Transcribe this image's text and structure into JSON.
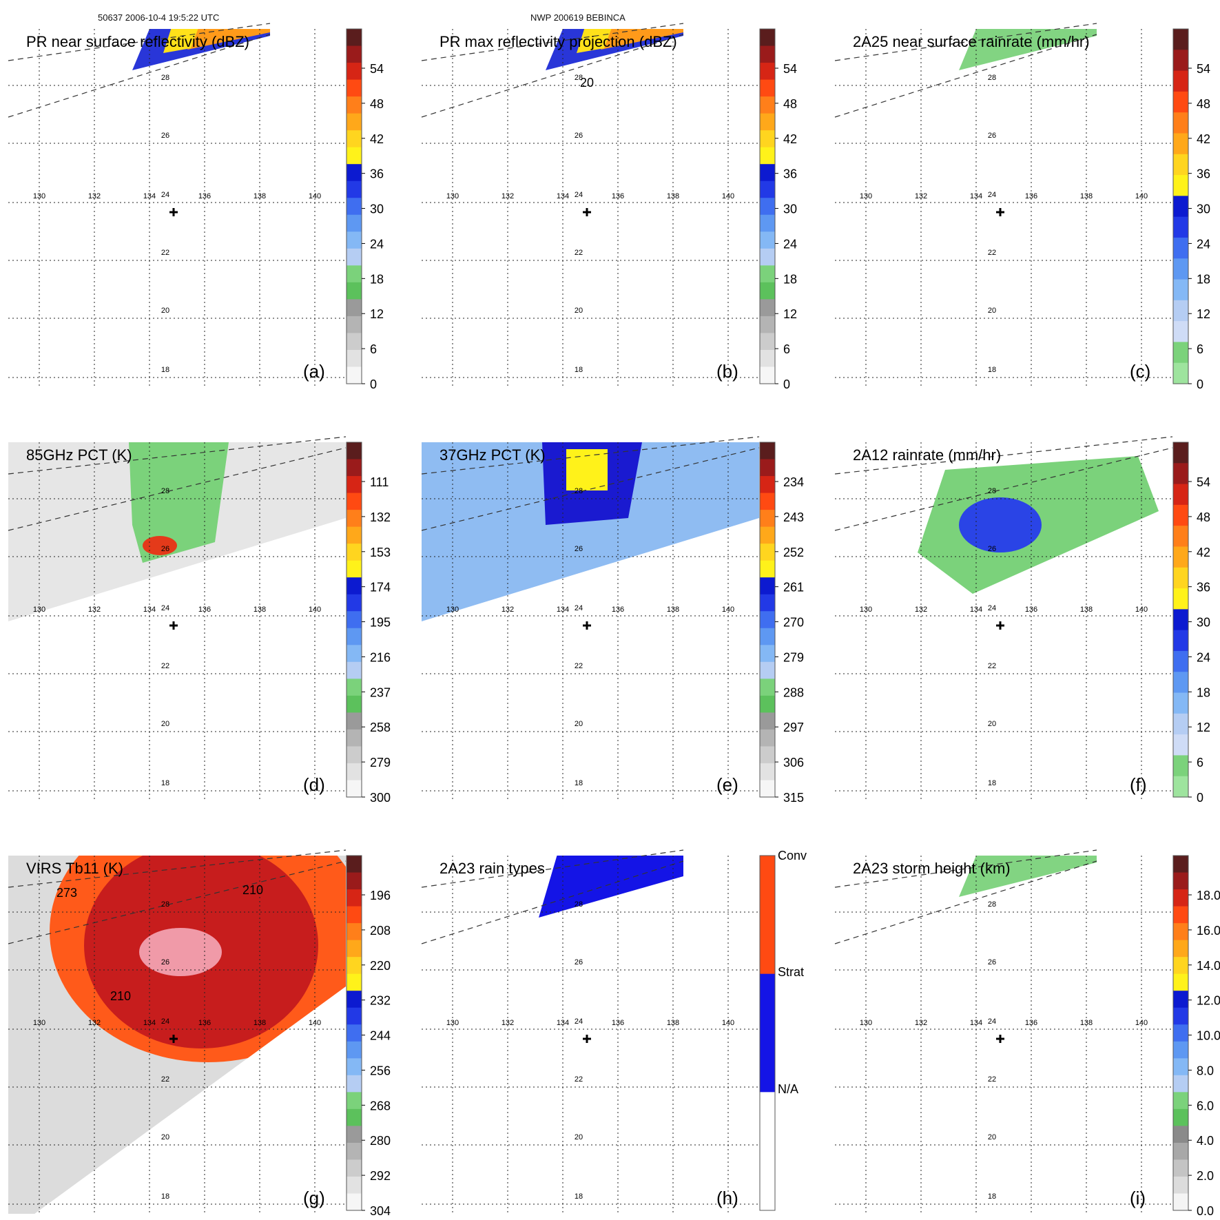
{
  "header": {
    "left": "50637 2006-10-4 19:5:22 UTC",
    "center": "NWP 200619 BEBINCA"
  },
  "map": {
    "lon_ticks": [
      "130",
      "132",
      "134",
      "136",
      "138",
      "140"
    ],
    "lat_ticks": [
      "28",
      "26",
      "24",
      "22",
      "20",
      "18"
    ],
    "storm_center_marker": "plus-icon"
  },
  "chart_data": [
    {
      "type": "heatmap",
      "panel": "(a)",
      "title": "PR near surface reflectivity (dBZ)",
      "colorbar_ticks": [
        "54",
        "48",
        "42",
        "36",
        "30",
        "24",
        "18",
        "12",
        "6",
        "0"
      ]
    },
    {
      "type": "heatmap",
      "panel": "(b)",
      "title": "PR max reflectivity projection (dBZ)",
      "contour_labels": [
        "20"
      ],
      "colorbar_ticks": [
        "54",
        "48",
        "42",
        "36",
        "30",
        "24",
        "18",
        "12",
        "6",
        "0"
      ]
    },
    {
      "type": "heatmap",
      "panel": "(c)",
      "title": "2A25 near surface rainrate (mm/hr)",
      "colorbar_ticks": [
        "54",
        "48",
        "42",
        "36",
        "30",
        "24",
        "18",
        "12",
        "6",
        "0"
      ]
    },
    {
      "type": "heatmap",
      "panel": "(d)",
      "title": "85GHz PCT (K)",
      "colorbar_ticks": [
        "111",
        "132",
        "153",
        "174",
        "195",
        "216",
        "237",
        "258",
        "279",
        "300"
      ]
    },
    {
      "type": "heatmap",
      "panel": "(e)",
      "title": "37GHz PCT (K)",
      "colorbar_ticks": [
        "234",
        "243",
        "252",
        "261",
        "270",
        "279",
        "288",
        "297",
        "306",
        "315"
      ]
    },
    {
      "type": "heatmap",
      "panel": "(f)",
      "title": "2A12 rainrate (mm/hr)",
      "colorbar_ticks": [
        "54",
        "48",
        "42",
        "36",
        "30",
        "24",
        "18",
        "12",
        "6",
        "0"
      ]
    },
    {
      "type": "heatmap",
      "panel": "(g)",
      "title": "VIRS Tb11 (K)",
      "contour_labels": [
        "210",
        "210",
        "273"
      ],
      "colorbar_ticks": [
        "196",
        "208",
        "220",
        "232",
        "244",
        "256",
        "268",
        "280",
        "292",
        "304"
      ]
    },
    {
      "type": "heatmap",
      "panel": "(h)",
      "title": "2A23 rain types",
      "colorbar_ticks": [
        "Conv",
        "Strat",
        "N/A"
      ]
    },
    {
      "type": "heatmap",
      "panel": "(i)",
      "title": "2A23 storm height (km)",
      "colorbar_ticks": [
        "18.0",
        "16.0",
        "14.0",
        "12.0",
        "10.0",
        "8.0",
        "6.0",
        "4.0",
        "2.0",
        "0.0"
      ]
    }
  ]
}
